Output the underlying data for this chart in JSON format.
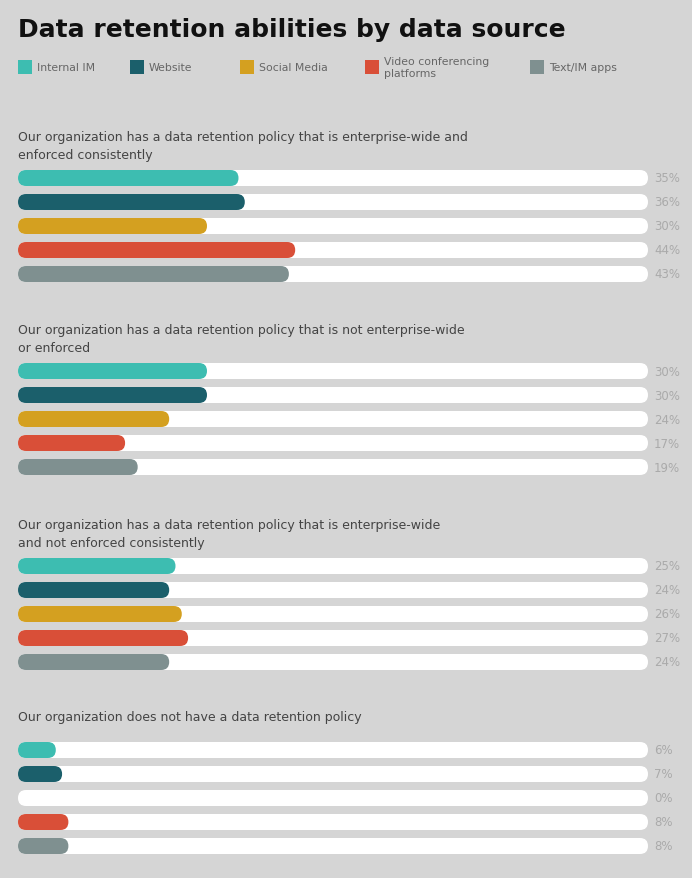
{
  "title": "Data retention abilities by data source",
  "background_color": "#d5d5d5",
  "legend": [
    {
      "label": "Internal IM",
      "color": "#3dbdb1"
    },
    {
      "label": "Website",
      "color": "#1b5f6b"
    },
    {
      "label": "Social Media",
      "color": "#d4a020"
    },
    {
      "label": "Video conferencing\nplatforms",
      "color": "#d94f38"
    },
    {
      "label": "Text/IM apps",
      "color": "#7f9090"
    }
  ],
  "groups": [
    {
      "question": "Our organization has a data retention policy that is enterprise-wide and\nenforced consistently",
      "values": [
        35,
        36,
        30,
        44,
        43
      ]
    },
    {
      "question": "Our organization has a data retention policy that is not enterprise-wide\nor enforced",
      "values": [
        30,
        30,
        24,
        17,
        19
      ]
    },
    {
      "question": "Our organization has a data retention policy that is enterprise-wide\nand not enforced consistently",
      "values": [
        25,
        24,
        26,
        27,
        24
      ]
    },
    {
      "question": "Our organization does not have a data retention policy",
      "values": [
        6,
        7,
        0,
        8,
        8
      ]
    }
  ],
  "bar_colors": [
    "#3dbdb1",
    "#1b5f6b",
    "#d4a020",
    "#d94f38",
    "#7f9090"
  ],
  "bar_bg_color": "#ffffff",
  "max_value": 100,
  "label_color": "#aaaaaa",
  "question_color": "#444444",
  "title_color": "#111111"
}
